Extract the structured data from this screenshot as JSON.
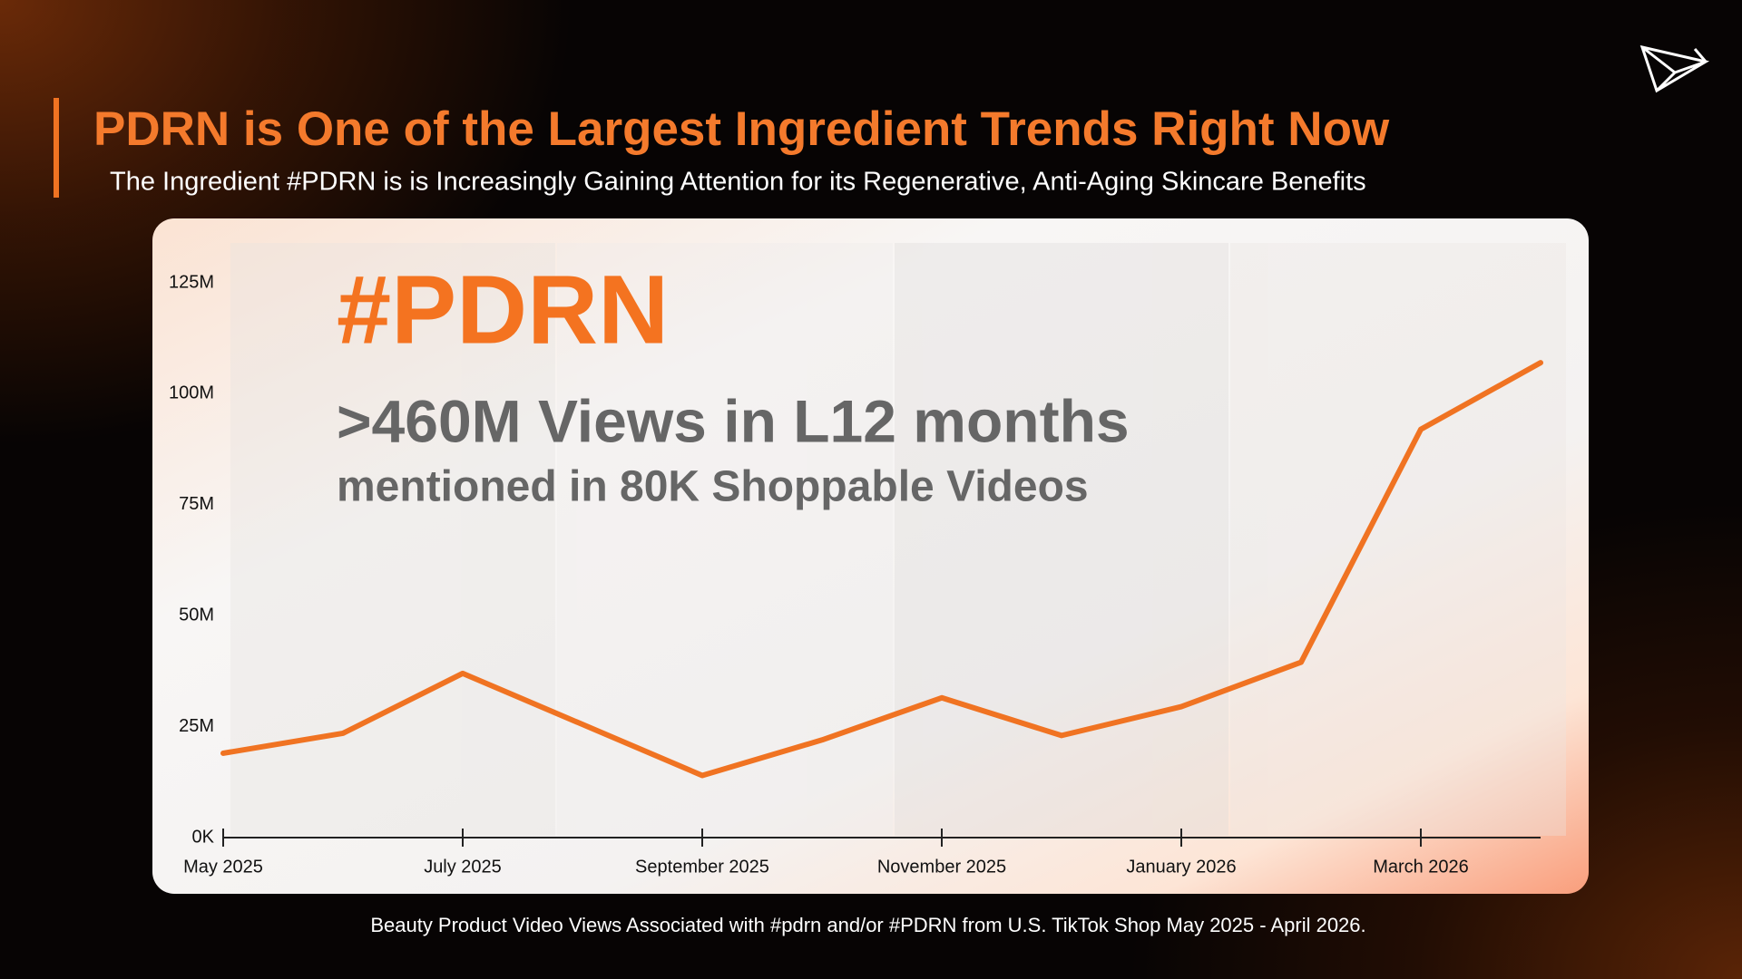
{
  "chart_data": {
    "type": "line",
    "title": "PDRN is One of the Largest Ingredient Trends Right Now",
    "subtitle": "The Ingredient #PDRN is is Increasingly Gaining Attention for its Regenerative, Anti-Aging Skincare Benefits",
    "headline": "#PDRN",
    "stat": ">460M Views in L12 months",
    "substat": "mentioned in 80K Shoppable Videos",
    "caption": "Beauty Product Video Views Associated with #pdrn and/or #PDRN  from U.S. TikTok Shop May 2025 - April 2026.",
    "categories": [
      "May 2025",
      null,
      "July 2025",
      null,
      "September 2025",
      null,
      "November 2025",
      null,
      "January 2026",
      null,
      "March 2026",
      null
    ],
    "values": [
      19,
      23.5,
      37,
      25.5,
      14,
      22,
      31.5,
      23,
      29.5,
      39.5,
      92,
      107
    ],
    "color": "#f07322",
    "ylim": [
      0,
      125
    ],
    "yticks": [
      {
        "value": 0,
        "label": "0K"
      },
      {
        "value": 25,
        "label": "25M"
      },
      {
        "value": 50,
        "label": "50M"
      },
      {
        "value": 75,
        "label": "75M"
      },
      {
        "value": 100,
        "label": "100M"
      },
      {
        "value": 125,
        "label": "125M"
      }
    ],
    "grid": false
  }
}
